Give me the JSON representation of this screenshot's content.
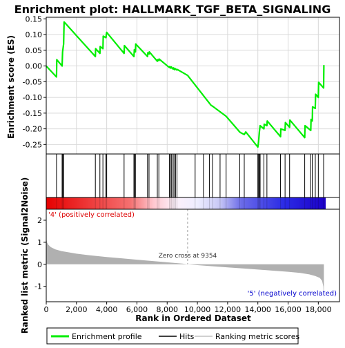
{
  "chart_data": {
    "type": "line",
    "title": "Enrichment plot: HALLMARK_TGF_BETA_SIGNALING",
    "xlabel": "Rank in Ordered Dataset",
    "top_panel": {
      "ylabel": "Enrichment score (ES)",
      "ylim": [
        -0.28,
        0.155
      ],
      "yticks": [
        -0.25,
        -0.2,
        -0.15,
        -0.1,
        -0.05,
        0.0,
        0.05,
        0.1,
        0.15
      ],
      "ytick_labels": [
        "-0.25",
        "-0.20",
        "-0.15",
        "-0.10",
        "-0.05",
        "0.00",
        "0.05",
        "0.10",
        "0.15"
      ],
      "series": [
        {
          "name": "Enrichment profile",
          "color": "#00ee00",
          "x": [
            0,
            680,
            700,
            1050,
            1080,
            1150,
            1180,
            3250,
            3270,
            3550,
            3570,
            3750,
            3770,
            3950,
            4000,
            5150,
            5170,
            5800,
            5830,
            5900,
            5920,
            6700,
            6720,
            6800,
            6820,
            7350,
            7370,
            7450,
            7470,
            8150,
            8170,
            8250,
            8270,
            8400,
            8420,
            8500,
            8520,
            8650,
            8670,
            9354,
            10900,
            11000,
            11900,
            12800,
            12850,
            13100,
            13200,
            14000,
            14050,
            14100,
            14150,
            14400,
            14420,
            14600,
            14620,
            15500,
            15520,
            15800,
            15820,
            16100,
            16120,
            17100,
            17120,
            17500,
            17520,
            17600,
            17620,
            17800,
            17820,
            18000,
            18020,
            18350,
            18370
          ],
          "y": [
            0.0,
            -0.035,
            0.02,
            0.0,
            0.045,
            0.07,
            0.14,
            0.03,
            0.055,
            0.04,
            0.062,
            0.055,
            0.095,
            0.09,
            0.107,
            0.04,
            0.065,
            0.03,
            0.052,
            0.045,
            0.07,
            0.03,
            0.042,
            0.038,
            0.045,
            0.015,
            0.02,
            0.017,
            0.022,
            -0.005,
            -0.002,
            -0.007,
            -0.003,
            -0.01,
            -0.006,
            -0.012,
            -0.008,
            -0.013,
            -0.011,
            -0.03,
            -0.125,
            -0.128,
            -0.16,
            -0.21,
            -0.212,
            -0.218,
            -0.21,
            -0.258,
            -0.24,
            -0.21,
            -0.19,
            -0.2,
            -0.185,
            -0.19,
            -0.175,
            -0.225,
            -0.2,
            -0.205,
            -0.18,
            -0.195,
            -0.172,
            -0.228,
            -0.19,
            -0.205,
            -0.17,
            -0.175,
            -0.13,
            -0.135,
            -0.09,
            -0.1,
            -0.052,
            -0.07,
            0.003
          ]
        }
      ]
    },
    "hits_panel": {
      "name": "Hits",
      "positions": [
        680,
        1050,
        1100,
        1150,
        3250,
        3550,
        3750,
        3950,
        4000,
        5150,
        5800,
        5850,
        5900,
        6700,
        6800,
        7350,
        7450,
        8150,
        8250,
        8300,
        8400,
        8500,
        8550,
        8650,
        9850,
        10400,
        10800,
        11000,
        11500,
        11900,
        12800,
        13100,
        14000,
        14050,
        14100,
        14150,
        14400,
        14600,
        15500,
        15800,
        16100,
        17100,
        17500,
        17600,
        17800,
        18000,
        18350
      ]
    },
    "color_bar": {
      "positive_label": "'4' (positively correlated)",
      "negative_label": "'5' (negatively correlated)",
      "positive_color": "#ff0000",
      "negative_color": "#0000ff"
    },
    "metric_panel": {
      "name": "Ranking metric scores",
      "ylabel": "Ranked list metric (Signal2Noise)",
      "ylim": [
        -1.7,
        2.5
      ],
      "yticks": [
        -1,
        0,
        1,
        2
      ],
      "ytick_labels": [
        "-1",
        "0",
        "1",
        "2"
      ],
      "zero_cross_label": "Zero cross at 9354",
      "zero_cross": 9354,
      "color": "#b0b0b0",
      "profile_x": [
        0,
        50,
        150,
        300,
        600,
        1000,
        2000,
        3000,
        4000,
        5000,
        6000,
        7000,
        8000,
        9000,
        9354,
        10000,
        11000,
        12000,
        13000,
        14000,
        15000,
        16000,
        16800,
        17400,
        17800,
        18100,
        18250,
        18330,
        18370
      ],
      "profile_y": [
        1.2,
        1.0,
        0.88,
        0.78,
        0.68,
        0.6,
        0.48,
        0.4,
        0.33,
        0.27,
        0.21,
        0.15,
        0.09,
        0.03,
        0.0,
        -0.04,
        -0.09,
        -0.14,
        -0.19,
        -0.24,
        -0.29,
        -0.34,
        -0.39,
        -0.46,
        -0.53,
        -0.62,
        -0.75,
        -1.0,
        -1.55
      ]
    },
    "xlim": [
      0,
      19400
    ],
    "xticks": [
      0,
      2000,
      4000,
      6000,
      8000,
      10000,
      12000,
      14000,
      16000,
      18000
    ],
    "xtick_labels": [
      "0",
      "2,000",
      "4,000",
      "6,000",
      "8,000",
      "10,000",
      "12,000",
      "14,000",
      "16,000",
      "18,000"
    ],
    "legend": {
      "placement": "bottom",
      "entries": [
        "Enrichment profile",
        "Hits",
        "Ranking metric scores"
      ]
    }
  }
}
